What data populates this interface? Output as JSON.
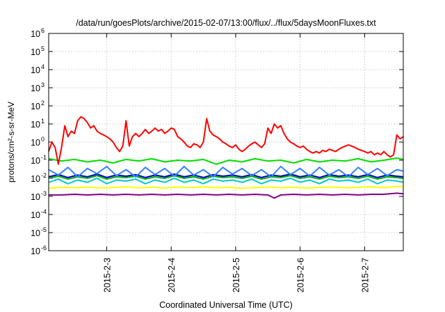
{
  "chart_data": {
    "type": "line",
    "title": "/data/run/goesPlots/archive/2015-02-07/13:00/flux/../flux/5daysMoonFluxes.txt",
    "xlabel": "Coordinated Universal Time (UTC)",
    "ylabel": "protons/cm²-s-sr-MeV",
    "yscale": "log",
    "ylim": [
      1e-06,
      1000000.0
    ],
    "xlim_days": [
      2.1,
      7.6
    ],
    "grid": true,
    "legend": "none",
    "x_ticks": [
      {
        "day": 3,
        "label": "2015-2-3"
      },
      {
        "day": 4,
        "label": "2015-2-4"
      },
      {
        "day": 5,
        "label": "2015-2-5"
      },
      {
        "day": 6,
        "label": "2015-2-6"
      },
      {
        "day": 7,
        "label": "2015-2-7"
      }
    ],
    "y_ticks": [
      {
        "exp": -6,
        "base": "10",
        "sup": "-6"
      },
      {
        "exp": -5,
        "base": "10",
        "sup": "-5"
      },
      {
        "exp": -4,
        "base": "10",
        "sup": "-4"
      },
      {
        "exp": -3,
        "base": "10",
        "sup": "-3"
      },
      {
        "exp": -2,
        "base": "10",
        "sup": "-2"
      },
      {
        "exp": -1,
        "base": "10",
        "sup": "-1"
      },
      {
        "exp": 0,
        "base": "10",
        "sup": "0"
      },
      {
        "exp": 1,
        "base": "10",
        "sup": "1"
      },
      {
        "exp": 2,
        "base": "10",
        "sup": "2"
      },
      {
        "exp": 3,
        "base": "10",
        "sup": "3"
      },
      {
        "exp": 4,
        "base": "10",
        "sup": "4"
      },
      {
        "exp": 5,
        "base": "10",
        "sup": "5"
      },
      {
        "exp": 6,
        "base": "10",
        "sup": "6"
      }
    ],
    "series": [
      {
        "color": "#800080",
        "x": [
          2.1,
          2.3,
          2.5,
          2.7,
          2.9,
          3.1,
          3.3,
          3.5,
          3.7,
          3.9,
          4.1,
          4.3,
          4.5,
          4.7,
          4.9,
          5.1,
          5.3,
          5.5,
          5.6,
          5.7,
          5.9,
          6.1,
          6.3,
          6.5,
          6.7,
          6.9,
          7.1,
          7.3,
          7.5,
          7.6
        ],
        "y": [
          0.0012,
          0.0012,
          0.0013,
          0.0012,
          0.0013,
          0.0012,
          0.0013,
          0.0012,
          0.0013,
          0.0012,
          0.0013,
          0.0012,
          0.0013,
          0.0012,
          0.0013,
          0.0012,
          0.0013,
          0.0012,
          0.0008,
          0.0012,
          0.0013,
          0.0012,
          0.0013,
          0.0012,
          0.0013,
          0.0012,
          0.0013,
          0.0013,
          0.0015,
          0.0014
        ]
      },
      {
        "color": "#ffff00",
        "x": [
          2.1,
          2.3,
          2.5,
          2.7,
          2.9,
          3.1,
          3.3,
          3.5,
          3.7,
          3.9,
          4.1,
          4.3,
          4.5,
          4.7,
          4.9,
          5.1,
          5.3,
          5.5,
          5.7,
          5.9,
          6.1,
          6.3,
          6.5,
          6.7,
          6.9,
          7.1,
          7.3,
          7.5,
          7.6
        ],
        "y": [
          0.0028,
          0.0032,
          0.003,
          0.0033,
          0.0029,
          0.0031,
          0.0034,
          0.003,
          0.0032,
          0.0029,
          0.0033,
          0.0031,
          0.0034,
          0.003,
          0.0032,
          0.0028,
          0.0031,
          0.0033,
          0.003,
          0.0032,
          0.0029,
          0.0031,
          0.0033,
          0.003,
          0.0032,
          0.0034,
          0.0031,
          0.0036,
          0.0035
        ]
      },
      {
        "color": "#00c8c8",
        "x": [
          2.1,
          2.25,
          2.4,
          2.55,
          2.7,
          2.85,
          3.0,
          3.15,
          3.3,
          3.45,
          3.6,
          3.75,
          3.9,
          4.05,
          4.2,
          4.35,
          4.5,
          4.65,
          4.8,
          4.95,
          5.1,
          5.25,
          5.4,
          5.55,
          5.7,
          5.85,
          6.0,
          6.15,
          6.3,
          6.45,
          6.6,
          6.75,
          6.9,
          7.05,
          7.2,
          7.35,
          7.5,
          7.6
        ],
        "y": [
          0.006,
          0.009,
          0.005,
          0.008,
          0.006,
          0.01,
          0.005,
          0.008,
          0.007,
          0.009,
          0.005,
          0.008,
          0.006,
          0.01,
          0.006,
          0.008,
          0.005,
          0.009,
          0.007,
          0.008,
          0.006,
          0.009,
          0.005,
          0.008,
          0.007,
          0.01,
          0.006,
          0.008,
          0.005,
          0.009,
          0.007,
          0.008,
          0.006,
          0.009,
          0.005,
          0.008,
          0.007,
          0.006
        ]
      },
      {
        "color": "#00b000",
        "x": [
          2.1,
          2.25,
          2.4,
          2.55,
          2.7,
          2.85,
          3.0,
          3.15,
          3.3,
          3.45,
          3.6,
          3.75,
          3.9,
          4.05,
          4.2,
          4.35,
          4.5,
          4.65,
          4.8,
          4.95,
          5.1,
          5.25,
          5.4,
          5.55,
          5.7,
          5.85,
          6.0,
          6.15,
          6.3,
          6.45,
          6.6,
          6.75,
          6.9,
          7.05,
          7.2,
          7.35,
          7.5,
          7.6
        ],
        "y": [
          0.01,
          0.013,
          0.009,
          0.012,
          0.01,
          0.014,
          0.009,
          0.012,
          0.011,
          0.013,
          0.009,
          0.012,
          0.01,
          0.014,
          0.01,
          0.012,
          0.009,
          0.013,
          0.011,
          0.012,
          0.01,
          0.013,
          0.009,
          0.012,
          0.011,
          0.014,
          0.01,
          0.012,
          0.009,
          0.013,
          0.011,
          0.012,
          0.01,
          0.013,
          0.009,
          0.012,
          0.011,
          0.01
        ]
      },
      {
        "color": "#0000c8",
        "x": [
          2.1,
          2.25,
          2.4,
          2.55,
          2.7,
          2.85,
          3.0,
          3.15,
          3.3,
          3.45,
          3.6,
          3.75,
          3.9,
          4.05,
          4.2,
          4.35,
          4.5,
          4.65,
          4.8,
          4.95,
          5.1,
          5.25,
          5.4,
          5.55,
          5.7,
          5.85,
          6.0,
          6.15,
          6.3,
          6.45,
          6.6,
          6.75,
          6.9,
          7.05,
          7.2,
          7.35,
          7.5,
          7.6
        ],
        "y": [
          0.012,
          0.016,
          0.011,
          0.015,
          0.012,
          0.017,
          0.011,
          0.015,
          0.013,
          0.016,
          0.011,
          0.015,
          0.012,
          0.017,
          0.012,
          0.015,
          0.011,
          0.016,
          0.013,
          0.015,
          0.012,
          0.016,
          0.011,
          0.015,
          0.013,
          0.017,
          0.012,
          0.015,
          0.011,
          0.016,
          0.013,
          0.015,
          0.012,
          0.016,
          0.011,
          0.015,
          0.013,
          0.012
        ]
      },
      {
        "color": "#3080ff",
        "x": [
          2.1,
          2.25,
          2.4,
          2.55,
          2.7,
          2.85,
          3.0,
          3.15,
          3.3,
          3.45,
          3.6,
          3.75,
          3.9,
          4.05,
          4.2,
          4.35,
          4.5,
          4.65,
          4.8,
          4.95,
          5.1,
          5.25,
          5.4,
          5.55,
          5.7,
          5.85,
          6.0,
          6.15,
          6.3,
          6.45,
          6.6,
          6.75,
          6.9,
          7.05,
          7.2,
          7.35,
          7.5,
          7.6
        ],
        "y": [
          0.03,
          0.015,
          0.04,
          0.012,
          0.035,
          0.018,
          0.045,
          0.014,
          0.03,
          0.012,
          0.04,
          0.016,
          0.035,
          0.013,
          0.045,
          0.015,
          0.03,
          0.012,
          0.04,
          0.017,
          0.035,
          0.014,
          0.03,
          0.012,
          0.045,
          0.016,
          0.035,
          0.013,
          0.04,
          0.015,
          0.03,
          0.012,
          0.04,
          0.016,
          0.035,
          0.014,
          0.03,
          0.025
        ]
      },
      {
        "color": "#00e000",
        "x": [
          2.1,
          2.3,
          2.5,
          2.7,
          2.9,
          3.1,
          3.3,
          3.5,
          3.7,
          3.9,
          4.1,
          4.3,
          4.5,
          4.7,
          4.9,
          5.1,
          5.3,
          5.5,
          5.7,
          5.9,
          6.1,
          6.3,
          6.5,
          6.7,
          6.9,
          7.1,
          7.3,
          7.5,
          7.6
        ],
        "y": [
          0.12,
          0.09,
          0.11,
          0.08,
          0.1,
          0.07,
          0.11,
          0.09,
          0.12,
          0.08,
          0.1,
          0.09,
          0.11,
          0.06,
          0.1,
          0.08,
          0.12,
          0.09,
          0.1,
          0.07,
          0.11,
          0.08,
          0.1,
          0.09,
          0.12,
          0.08,
          0.1,
          0.13,
          0.11
        ]
      },
      {
        "color": "#ff0000",
        "x": [
          2.1,
          2.15,
          2.2,
          2.25,
          2.3,
          2.35,
          2.4,
          2.45,
          2.5,
          2.55,
          2.6,
          2.65,
          2.7,
          2.75,
          2.8,
          2.85,
          2.9,
          2.95,
          3.0,
          3.05,
          3.1,
          3.15,
          3.2,
          3.25,
          3.3,
          3.35,
          3.4,
          3.45,
          3.5,
          3.55,
          3.6,
          3.65,
          3.7,
          3.75,
          3.8,
          3.85,
          3.9,
          3.95,
          4.0,
          4.05,
          4.1,
          4.15,
          4.2,
          4.25,
          4.3,
          4.35,
          4.4,
          4.45,
          4.5,
          4.55,
          4.6,
          4.65,
          4.7,
          4.75,
          4.8,
          4.85,
          4.9,
          4.95,
          5.0,
          5.05,
          5.1,
          5.15,
          5.2,
          5.25,
          5.3,
          5.35,
          5.4,
          5.45,
          5.5,
          5.55,
          5.6,
          5.65,
          5.7,
          5.75,
          5.8,
          5.85,
          5.9,
          5.95,
          6.0,
          6.05,
          6.1,
          6.15,
          6.2,
          6.25,
          6.3,
          6.35,
          6.4,
          6.45,
          6.5,
          6.55,
          6.6,
          6.65,
          6.7,
          6.75,
          6.8,
          6.85,
          6.9,
          6.95,
          7.0,
          7.05,
          7.1,
          7.15,
          7.2,
          7.25,
          7.3,
          7.35,
          7.4,
          7.45,
          7.5,
          7.55,
          7.6
        ],
        "y": [
          0.3,
          1.0,
          0.5,
          0.06,
          0.5,
          8,
          2,
          4,
          3,
          15,
          25,
          20,
          12,
          6,
          8,
          4,
          3,
          2.5,
          2,
          1.5,
          1,
          0.5,
          0.3,
          0.6,
          15,
          0.6,
          2,
          3,
          2,
          3,
          5,
          3,
          4,
          6,
          4,
          5,
          3,
          4,
          6,
          5,
          2,
          1.5,
          1,
          0.6,
          0.5,
          0.8,
          0.7,
          0.5,
          1.0,
          20,
          4,
          2.5,
          2,
          1.5,
          1,
          0.8,
          0.6,
          0.5,
          0.7,
          0.4,
          0.3,
          0.4,
          0.6,
          0.8,
          1.0,
          0.7,
          0.5,
          0.8,
          6,
          3,
          10,
          6,
          8,
          3,
          1.5,
          1,
          0.8,
          0.6,
          0.5,
          0.6,
          0.4,
          0.3,
          0.25,
          0.3,
          0.25,
          0.35,
          0.3,
          0.4,
          0.35,
          0.3,
          0.4,
          0.5,
          0.6,
          0.7,
          0.6,
          0.5,
          0.4,
          0.35,
          0.3,
          0.25,
          0.3,
          0.2,
          0.25,
          0.2,
          0.3,
          0.2,
          0.15,
          0.2,
          2.5,
          1.5,
          2.0
        ]
      }
    ]
  }
}
